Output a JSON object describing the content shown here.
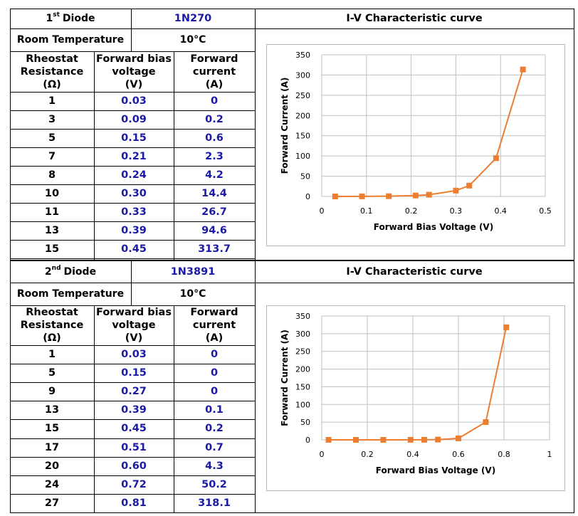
{
  "diodes": [
    {
      "diode_label": "1st Diode",
      "diode_ordinal_num": "1",
      "diode_ordinal_sup": "st",
      "diode_word": "Diode",
      "model": "1N270",
      "room_temp_label": "Room Temperature",
      "room_temp_value": "10°C",
      "col_headers": [
        [
          "Rheostat",
          "Resistance",
          "(Ω)"
        ],
        [
          "Forward bias",
          "voltage",
          "(V)"
        ],
        [
          "Forward",
          "current",
          "(A)"
        ]
      ],
      "rows": [
        [
          "1",
          "0.03",
          "0"
        ],
        [
          "3",
          "0.09",
          "0.2"
        ],
        [
          "5",
          "0.15",
          "0.6"
        ],
        [
          "7",
          "0.21",
          "2.3"
        ],
        [
          "8",
          "0.24",
          "4.2"
        ],
        [
          "10",
          "0.30",
          "14.4"
        ],
        [
          "11",
          "0.33",
          "26.7"
        ],
        [
          "13",
          "0.39",
          "94.6"
        ],
        [
          "15",
          "0.45",
          "313.7"
        ]
      ],
      "curve_title": "I-V Characteristic curve"
    },
    {
      "diode_label": "2nd Diode",
      "diode_ordinal_num": "2",
      "diode_ordinal_sup": "nd",
      "diode_word": "Diode",
      "model": "1N3891",
      "room_temp_label": "Room Temperature",
      "room_temp_value": "10°C",
      "col_headers": [
        [
          "Rheostat",
          "Resistance",
          "(Ω)"
        ],
        [
          "Forward bias",
          "voltage",
          "(V)"
        ],
        [
          "Forward",
          "current",
          "(A)"
        ]
      ],
      "rows": [
        [
          "1",
          "0.03",
          "0"
        ],
        [
          "5",
          "0.15",
          "0"
        ],
        [
          "9",
          "0.27",
          "0"
        ],
        [
          "13",
          "0.39",
          "0.1"
        ],
        [
          "15",
          "0.45",
          "0.2"
        ],
        [
          "17",
          "0.51",
          "0.7"
        ],
        [
          "20",
          "0.60",
          "4.3"
        ],
        [
          "24",
          "0.72",
          "50.2"
        ],
        [
          "27",
          "0.81",
          "318.1"
        ]
      ],
      "curve_title": "I-V Characteristic curve"
    }
  ],
  "colors": {
    "value_text": "#1a1aa6",
    "series": "#ed7d31",
    "grid": "#bfbfbf"
  },
  "chart_data": [
    {
      "type": "line",
      "xlabel": "Forward Bias Voltage (V)",
      "ylabel": "Forward Current (A)",
      "xlim": [
        0,
        0.5
      ],
      "ylim": [
        0,
        350
      ],
      "x_ticks": [
        "0",
        "0.1",
        "0.2",
        "0.3",
        "0.4",
        "0.5"
      ],
      "y_ticks": [
        "0",
        "50",
        "100",
        "150",
        "200",
        "250",
        "300",
        "350"
      ],
      "grid": true,
      "marker": "square",
      "series": [
        {
          "x": [
            0.03,
            0.09,
            0.15,
            0.21,
            0.24,
            0.3,
            0.33,
            0.39,
            0.45
          ],
          "y": [
            0,
            0.2,
            0.6,
            2.3,
            4.2,
            14.4,
            26.7,
            94.6,
            313.7
          ]
        }
      ]
    },
    {
      "type": "line",
      "xlabel": "Forward Bias Voltage (V)",
      "ylabel": "Forward Current (A)",
      "xlim": [
        0,
        1
      ],
      "ylim": [
        0,
        350
      ],
      "x_ticks": [
        "0",
        "0.2",
        "0.4",
        "0.6",
        "0.8",
        "1"
      ],
      "y_ticks": [
        "0",
        "50",
        "100",
        "150",
        "200",
        "250",
        "300",
        "350"
      ],
      "grid": true,
      "marker": "square",
      "series": [
        {
          "x": [
            0.03,
            0.15,
            0.27,
            0.39,
            0.45,
            0.51,
            0.6,
            0.72,
            0.81
          ],
          "y": [
            0,
            0,
            0,
            0.1,
            0.2,
            0.7,
            4.3,
            50.2,
            318.1
          ]
        }
      ]
    }
  ]
}
